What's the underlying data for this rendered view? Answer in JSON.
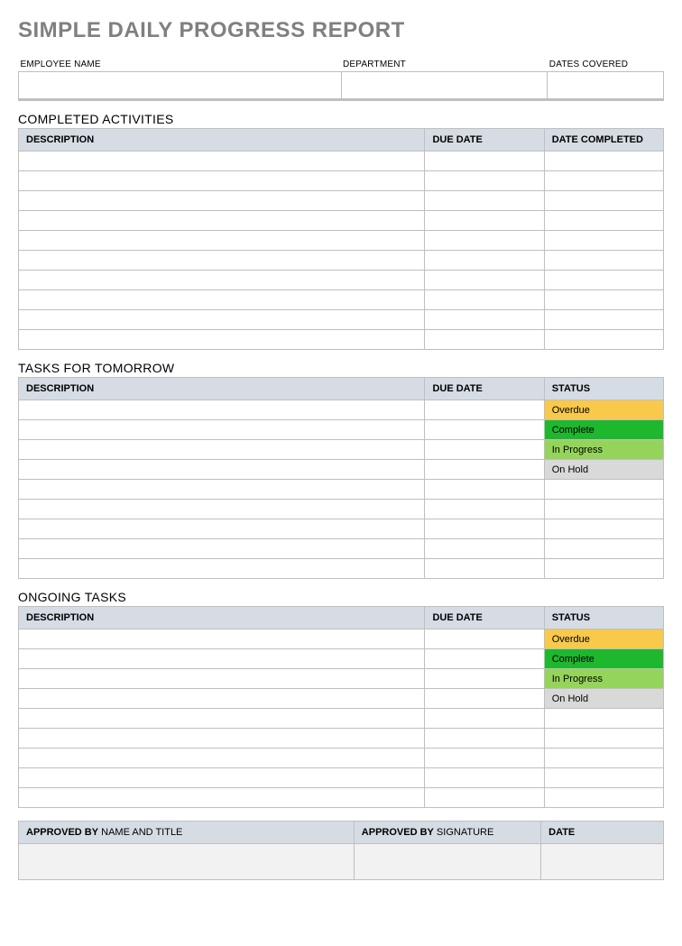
{
  "colors": {
    "title_gray": "#808080",
    "header_bg": "#d6dce4",
    "border": "#bfbfbf",
    "gray_fill": "#f2f2f2",
    "status_overdue": "#f8c94a",
    "status_complete": "#1db82d",
    "status_inprogress": "#95d45a",
    "status_onhold": "#d9d9d9"
  },
  "page_title": "SIMPLE DAILY PROGRESS REPORT",
  "info": {
    "employee_label": "EMPLOYEE NAME",
    "department_label": "DEPARTMENT",
    "dates_label": "DATES COVERED",
    "employee_value": "",
    "department_value": "",
    "dates_value": "",
    "col_widths_pct": [
      50,
      32,
      18
    ]
  },
  "completed": {
    "title": "COMPLETED ACTIVITIES",
    "columns": [
      "DESCRIPTION",
      "DUE DATE",
      "DATE COMPLETED"
    ],
    "col_widths_pct": [
      63,
      18.5,
      18.5
    ],
    "row_count": 10,
    "rows": [
      [
        "",
        "",
        ""
      ],
      [
        "",
        "",
        ""
      ],
      [
        "",
        "",
        ""
      ],
      [
        "",
        "",
        ""
      ],
      [
        "",
        "",
        ""
      ],
      [
        "",
        "",
        ""
      ],
      [
        "",
        "",
        ""
      ],
      [
        "",
        "",
        ""
      ],
      [
        "",
        "",
        ""
      ],
      [
        "",
        "",
        ""
      ]
    ]
  },
  "tomorrow": {
    "title": "TASKS FOR TOMORROW",
    "columns": [
      "DESCRIPTION",
      "DUE DATE",
      "STATUS"
    ],
    "col_widths_pct": [
      63,
      18.5,
      18.5
    ],
    "row_count": 9,
    "rows": [
      {
        "description": "",
        "due": "",
        "status": "Overdue",
        "status_color": "#f8c94a"
      },
      {
        "description": "",
        "due": "",
        "status": "Complete",
        "status_color": "#1db82d"
      },
      {
        "description": "",
        "due": "",
        "status": "In Progress",
        "status_color": "#95d45a"
      },
      {
        "description": "",
        "due": "",
        "status": "On Hold",
        "status_color": "#d9d9d9"
      },
      {
        "description": "",
        "due": "",
        "status": "",
        "status_color": "#ffffff"
      },
      {
        "description": "",
        "due": "",
        "status": "",
        "status_color": "#ffffff"
      },
      {
        "description": "",
        "due": "",
        "status": "",
        "status_color": "#ffffff"
      },
      {
        "description": "",
        "due": "",
        "status": "",
        "status_color": "#ffffff"
      },
      {
        "description": "",
        "due": "",
        "status": "",
        "status_color": "#ffffff"
      }
    ]
  },
  "ongoing": {
    "title": "ONGOING TASKS",
    "columns": [
      "DESCRIPTION",
      "DUE DATE",
      "STATUS"
    ],
    "col_widths_pct": [
      63,
      18.5,
      18.5
    ],
    "row_count": 9,
    "rows": [
      {
        "description": "",
        "due": "",
        "status": "Overdue",
        "status_color": "#f8c94a"
      },
      {
        "description": "",
        "due": "",
        "status": "Complete",
        "status_color": "#1db82d"
      },
      {
        "description": "",
        "due": "",
        "status": "In Progress",
        "status_color": "#95d45a"
      },
      {
        "description": "",
        "due": "",
        "status": "On Hold",
        "status_color": "#d9d9d9"
      },
      {
        "description": "",
        "due": "",
        "status": "",
        "status_color": "#ffffff"
      },
      {
        "description": "",
        "due": "",
        "status": "",
        "status_color": "#ffffff"
      },
      {
        "description": "",
        "due": "",
        "status": "",
        "status_color": "#ffffff"
      },
      {
        "description": "",
        "due": "",
        "status": "",
        "status_color": "#ffffff"
      },
      {
        "description": "",
        "due": "",
        "status": "",
        "status_color": "#ffffff"
      }
    ]
  },
  "approval": {
    "columns": [
      {
        "bold": "APPROVED BY",
        "normal": " NAME AND TITLE"
      },
      {
        "bold": "APPROVED BY",
        "normal": " SIGNATURE"
      },
      {
        "bold": "DATE",
        "normal": ""
      }
    ],
    "col_widths_pct": [
      52,
      29,
      19
    ],
    "values": [
      "",
      "",
      ""
    ]
  }
}
